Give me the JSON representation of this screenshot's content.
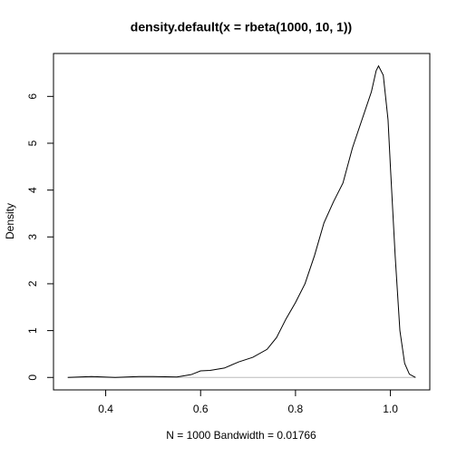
{
  "chart_data": {
    "type": "line",
    "title": "density.default(x = rbeta(1000, 10, 1))",
    "x_label": "N = 1000   Bandwidth = 0.01766",
    "y_label": "Density",
    "x": [
      0.32,
      0.37,
      0.42,
      0.47,
      0.5,
      0.55,
      0.58,
      0.6,
      0.62,
      0.65,
      0.68,
      0.71,
      0.74,
      0.76,
      0.78,
      0.8,
      0.82,
      0.84,
      0.86,
      0.88,
      0.9,
      0.92,
      0.94,
      0.96,
      0.97,
      0.975,
      0.985,
      0.995,
      1.0,
      1.01,
      1.02,
      1.03,
      1.04,
      1.053
    ],
    "series": [
      {
        "name": "density",
        "color": "#000000",
        "values": [
          0.0,
          0.02,
          0.0,
          0.02,
          0.02,
          0.01,
          0.06,
          0.14,
          0.15,
          0.2,
          0.33,
          0.43,
          0.6,
          0.85,
          1.25,
          1.6,
          2.0,
          2.6,
          3.3,
          3.75,
          4.15,
          4.9,
          5.5,
          6.1,
          6.55,
          6.65,
          6.45,
          5.5,
          4.5,
          2.6,
          1.0,
          0.3,
          0.07,
          0.0
        ]
      }
    ],
    "xlim": [
      0.29,
      1.083
    ],
    "ylim": [
      -0.266,
      6.916
    ],
    "xticks": [
      0.4,
      0.6,
      0.8,
      {
        "value": 1,
        "label": "1.0"
      }
    ],
    "yticks": [
      0,
      1,
      2,
      3,
      4,
      5,
      6
    ]
  }
}
